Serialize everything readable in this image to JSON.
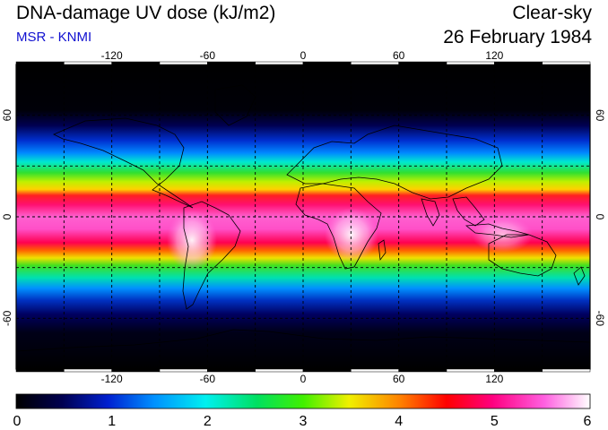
{
  "header": {
    "title": "DNA-damage UV dose (kJ/m2)",
    "source": "MSR - KNMI",
    "sky": "Clear-sky",
    "date": "26 February 1984"
  },
  "colors": {
    "source_text": "#1010d0"
  },
  "map": {
    "lon_ticks": [
      "-120",
      "-60",
      "0",
      "60",
      "120"
    ],
    "lat_ticks_left": [
      "60",
      "0",
      "-60"
    ],
    "lat_ticks_right": [
      "60",
      "0",
      "-60"
    ],
    "lon_range": [
      -180,
      180
    ],
    "lat_range": [
      -90,
      90
    ]
  },
  "colorbar": {
    "labels": [
      "0",
      "1",
      "2",
      "3",
      "4",
      "5",
      "6"
    ],
    "range": [
      0,
      6
    ]
  }
}
